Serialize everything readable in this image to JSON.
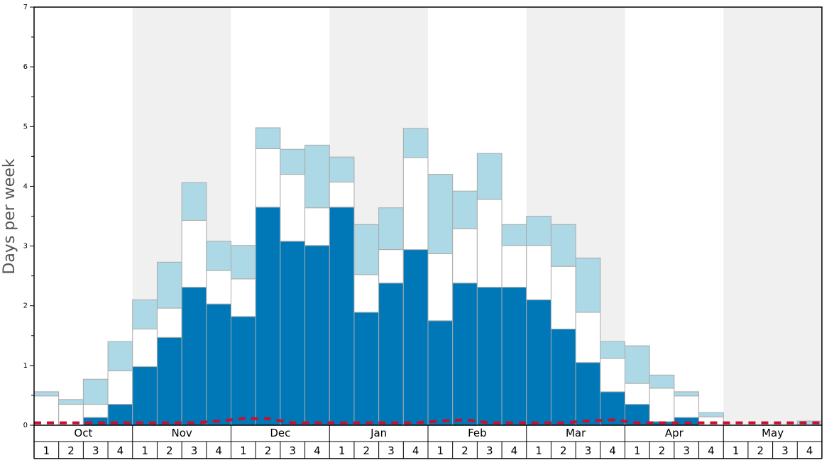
{
  "chart_data": {
    "type": "bar",
    "ylabel": "Days per week",
    "ylim": [
      0,
      7
    ],
    "yticks": [
      0,
      1,
      2,
      3,
      4,
      5,
      6,
      7
    ],
    "months": [
      "Oct",
      "Nov",
      "Dec",
      "Jan",
      "Feb",
      "Mar",
      "Apr",
      "May"
    ],
    "week_labels": [
      "1",
      "2",
      "3",
      "4"
    ],
    "stacked": true,
    "colors": {
      "series_1": "#0077b6",
      "series_2": "#ffffff",
      "series_3": "#add8e6",
      "dashed_line": "#c8102e",
      "alt_month_band": "#f0f0f0",
      "bar_outline": "#aaaaaa"
    },
    "series": [
      {
        "values": [
          0.0,
          0.0,
          0.13,
          0.35,
          0.98,
          1.47,
          2.31,
          2.03,
          1.82,
          3.65,
          3.08,
          3.01,
          3.65,
          1.89,
          2.38,
          2.94,
          1.75,
          2.38,
          2.31,
          2.31,
          2.1,
          1.61,
          1.05,
          0.56,
          0.35,
          0.06,
          0.13,
          0.0,
          0.0,
          0.0,
          0.0,
          0.0
        ]
      },
      {
        "values": [
          0.49,
          0.35,
          0.22,
          0.56,
          0.63,
          0.49,
          1.12,
          0.56,
          0.63,
          0.98,
          1.12,
          0.63,
          0.42,
          0.63,
          0.56,
          1.54,
          1.12,
          0.91,
          1.47,
          0.7,
          0.91,
          1.05,
          0.84,
          0.56,
          0.35,
          0.56,
          0.36,
          0.14,
          0.0,
          0.0,
          0.0,
          0.0
        ]
      },
      {
        "values": [
          0.07,
          0.08,
          0.42,
          0.49,
          0.49,
          0.77,
          0.63,
          0.49,
          0.56,
          0.35,
          0.42,
          1.05,
          0.42,
          0.84,
          0.7,
          0.49,
          1.33,
          0.63,
          0.77,
          0.35,
          0.49,
          0.7,
          0.91,
          0.28,
          0.63,
          0.22,
          0.07,
          0.07,
          0.0,
          0.0,
          0.0,
          0.07
        ]
      }
    ],
    "dashed_line": {
      "values": [
        0.04,
        0.04,
        0.04,
        0.04,
        0.04,
        0.04,
        0.04,
        0.07,
        0.11,
        0.11,
        0.04,
        0.04,
        0.04,
        0.04,
        0.04,
        0.04,
        0.07,
        0.09,
        0.04,
        0.04,
        0.04,
        0.04,
        0.07,
        0.09,
        0.04,
        0.04,
        0.04,
        0.04,
        0.04,
        0.04,
        0.04,
        0.04
      ]
    },
    "grid": false,
    "alternating_month_shading": true
  }
}
